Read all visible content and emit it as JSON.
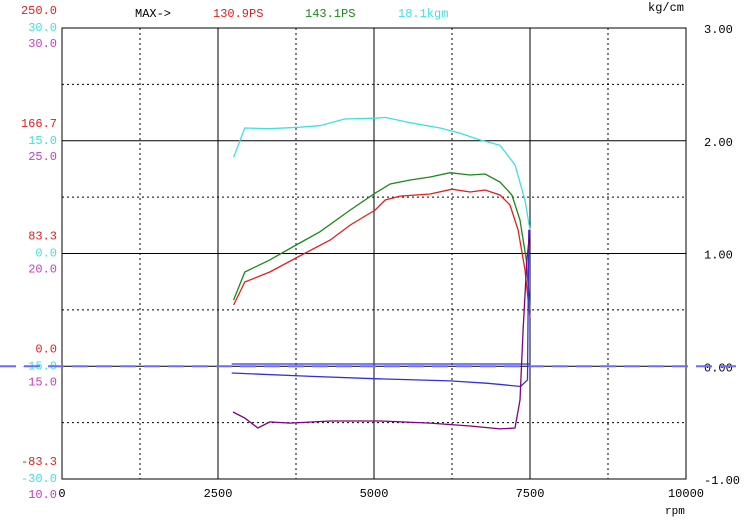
{
  "chart_data": {
    "type": "line",
    "max_prefix": "MAX->",
    "y2label": "kg/cm",
    "xlabel": "rpm",
    "xlim": [
      0,
      10000
    ],
    "xticks": [
      0,
      2500,
      5000,
      7500,
      10000
    ],
    "minor_xticks": [
      1250,
      3750,
      6250,
      8750
    ],
    "y_axes": [
      {
        "color": "#e02020",
        "ylim": [
          -83.3,
          250
        ],
        "yticks": [
          -83.3,
          {
            "value": 0,
            "label": "0.0"
          },
          83.3,
          166.7,
          {
            "value": 250,
            "label": "250.0"
          }
        ]
      },
      {
        "color": "#40e0e0",
        "ylim": [
          -30,
          30
        ],
        "yticks": [
          {
            "value": -30,
            "label": "-30.0"
          },
          {
            "value": -15,
            "label": "-15.0"
          },
          {
            "value": 0,
            "label": "0.0"
          },
          {
            "value": 15,
            "label": "15.0"
          },
          {
            "value": 30,
            "label": "30.0"
          }
        ]
      },
      {
        "color": "#c040c0",
        "ylim": [
          10,
          30
        ],
        "yticks": [
          {
            "value": 10,
            "label": "10.0"
          },
          {
            "value": 15,
            "label": "15.0"
          },
          {
            "value": 20,
            "label": "20.0"
          },
          {
            "value": 25,
            "label": "25.0"
          },
          {
            "value": 30,
            "label": "30.0"
          }
        ]
      }
    ],
    "y2lim": [
      -1,
      3
    ],
    "y2ticks": [
      {
        "value": -1,
        "label": "-1.00"
      },
      {
        "value": 0,
        "label": "0.00"
      },
      {
        "value": 1,
        "label": "1.00"
      },
      {
        "value": 2,
        "label": "2.00"
      },
      {
        "value": 3,
        "label": "3.00"
      }
    ],
    "minor_y2ticks": [
      -0.5,
      0.5,
      1.5,
      2.5
    ],
    "grid": true,
    "hline": {
      "value": 0,
      "axis": "y2",
      "color": "#6a6aff"
    },
    "series": [
      {
        "color": "#e02020",
        "y_axis": 0,
        "max_label": "130.9PS",
        "x": [
          2750,
          2930,
          3330,
          3810,
          4300,
          4620,
          5020,
          5180,
          5420,
          5900,
          6250,
          6540,
          6780,
          7020,
          7180,
          7310,
          7420,
          7500
        ],
        "values": [
          45.3,
          62.3,
          69.7,
          81.5,
          93.3,
          104.4,
          115.5,
          122.9,
          125.8,
          127.3,
          130.9,
          128.8,
          130.3,
          126.6,
          119.2,
          100.7,
          71.2,
          35.7
        ]
      },
      {
        "color": "#1a8a1a",
        "y_axis": 0,
        "max_label": "143.1PS",
        "x": [
          2750,
          2930,
          3330,
          3810,
          4130,
          4620,
          5020,
          5260,
          5580,
          5900,
          6220,
          6540,
          6780,
          7020,
          7210,
          7340,
          7440,
          7500
        ],
        "values": [
          49,
          69.7,
          78.6,
          91.1,
          99.3,
          115.5,
          128,
          134.7,
          137.7,
          139.9,
          143.1,
          141.4,
          142.1,
          136.2,
          126.6,
          108.1,
          78.6,
          41.6
        ]
      },
      {
        "color": "#40e0e0",
        "y_axis": 1,
        "max_label": "18.1kgm",
        "x": [
          2750,
          2930,
          3330,
          3810,
          4130,
          4530,
          5020,
          5180,
          5580,
          6060,
          6380,
          6700,
          7020,
          7260,
          7420,
          7500
        ],
        "values": [
          12.8,
          16.7,
          16.6,
          16.8,
          17.0,
          17.9,
          18.0,
          18.1,
          17.4,
          16.7,
          16.0,
          15.1,
          14.4,
          11.8,
          7.1,
          3.1
        ]
      },
      {
        "color": "#3030e0",
        "axis": "y2",
        "x": [
          2720,
          7500
        ],
        "values": [
          0.02,
          0.02
        ]
      },
      {
        "color": "#3030e0",
        "axis": "y2",
        "x": [
          2720,
          4000,
          5000,
          6220,
          6800,
          7000,
          7350,
          7460,
          7470,
          7480
        ],
        "values": [
          -0.06,
          -0.09,
          -0.11,
          -0.13,
          -0.15,
          -0.16,
          -0.18,
          -0.12,
          0.5,
          1.21
        ]
      },
      {
        "color": "#800080",
        "y_axis": 2,
        "x": [
          2740,
          2930,
          3140,
          3330,
          3650,
          4300,
          5100,
          5900,
          6540,
          7020,
          7260,
          7340,
          7390,
          7450,
          7500
        ],
        "values": [
          12.97,
          12.7,
          12.26,
          12.53,
          12.48,
          12.57,
          12.57,
          12.48,
          12.35,
          12.22,
          12.26,
          13.5,
          16.61,
          19.71,
          21.04
        ]
      }
    ]
  }
}
